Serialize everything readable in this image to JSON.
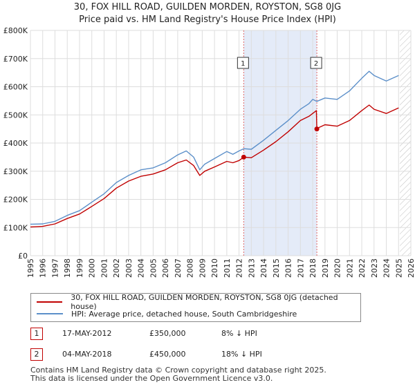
{
  "title_line1": "30, FOX HILL ROAD, GUILDEN MORDEN, ROYSTON, SG8 0JG",
  "title_line2": "Price paid vs. HM Land Registry's House Price Index (HPI)",
  "chart_data": {
    "type": "line",
    "x_range": [
      1995,
      2026
    ],
    "ylim": [
      0,
      800000
    ],
    "y_ticks": [
      0,
      100000,
      200000,
      300000,
      400000,
      500000,
      600000,
      700000,
      800000
    ],
    "y_tick_labels": [
      "£0",
      "£100K",
      "£200K",
      "£300K",
      "£400K",
      "£500K",
      "£600K",
      "£700K",
      "£800K"
    ],
    "x_ticks": [
      1995,
      1996,
      1997,
      1998,
      1999,
      2000,
      2001,
      2002,
      2003,
      2004,
      2005,
      2006,
      2007,
      2008,
      2009,
      2010,
      2011,
      2012,
      2013,
      2014,
      2015,
      2016,
      2017,
      2018,
      2019,
      2020,
      2021,
      2022,
      2023,
      2024,
      2025,
      2026
    ],
    "x_tick_labels": [
      "1995",
      "1996",
      "1997",
      "1998",
      "1999",
      "2000",
      "2001",
      "2002",
      "2003",
      "2004",
      "2005",
      "2006",
      "2007",
      "2008",
      "2009",
      "2010",
      "2011",
      "2012",
      "2013",
      "2014",
      "2015",
      "2016",
      "2017",
      "2018",
      "2019",
      "2020",
      "2021",
      "2022",
      "2023",
      "2024",
      "2025",
      "2026"
    ],
    "grid": true,
    "shaded_span": [
      2012.38,
      2018.34
    ],
    "forecast_start": 2025.1,
    "series": [
      {
        "name": "30, FOX HILL ROAD, GUILDEN MORDEN, ROYSTON, SG8 0JG (detached house)",
        "color": "#c00000",
        "x": [
          1995.0,
          1996.0,
          1997.0,
          1998.0,
          1999.0,
          2000.0,
          2001.0,
          2002.0,
          2003.0,
          2004.0,
          2005.0,
          2006.0,
          2007.0,
          2007.7,
          2008.3,
          2008.8,
          2009.2,
          2010.0,
          2011.0,
          2011.5,
          2012.0,
          2012.38,
          2013.0,
          2014.0,
          2015.0,
          2016.0,
          2017.0,
          2017.7,
          2018.3,
          2018.34,
          2018.5,
          2019.0,
          2020.0,
          2021.0,
          2022.0,
          2022.6,
          2023.0,
          2024.0,
          2025.0
        ],
        "y": [
          102000,
          104000,
          113000,
          132000,
          148000,
          175000,
          203000,
          240000,
          265000,
          282000,
          290000,
          305000,
          330000,
          340000,
          320000,
          285000,
          300000,
          315000,
          335000,
          330000,
          338000,
          350000,
          348000,
          375000,
          405000,
          440000,
          480000,
          495000,
          515000,
          450000,
          455000,
          465000,
          460000,
          480000,
          515000,
          535000,
          520000,
          505000,
          525000
        ]
      },
      {
        "name": "HPI: Average price, detached house, South Cambridgeshire",
        "color": "#5b8fc9",
        "x": [
          1995.0,
          1996.0,
          1997.0,
          1998.0,
          1999.0,
          2000.0,
          2001.0,
          2002.0,
          2003.0,
          2004.0,
          2005.0,
          2006.0,
          2007.0,
          2007.7,
          2008.3,
          2008.8,
          2009.2,
          2010.0,
          2011.0,
          2011.5,
          2012.0,
          2012.38,
          2013.0,
          2014.0,
          2015.0,
          2016.0,
          2017.0,
          2017.7,
          2018.0,
          2018.34,
          2019.0,
          2020.0,
          2021.0,
          2022.0,
          2022.6,
          2023.0,
          2024.0,
          2025.0
        ],
        "y": [
          112000,
          113000,
          122000,
          143000,
          160000,
          190000,
          220000,
          260000,
          285000,
          305000,
          312000,
          330000,
          358000,
          372000,
          350000,
          305000,
          325000,
          345000,
          370000,
          360000,
          372000,
          380000,
          378000,
          410000,
          445000,
          480000,
          520000,
          540000,
          555000,
          548000,
          560000,
          555000,
          585000,
          630000,
          655000,
          640000,
          620000,
          640000
        ]
      }
    ],
    "annotations": [
      {
        "label": "1",
        "x": 2012.38,
        "price": 350000
      },
      {
        "label": "2",
        "x": 2018.34,
        "price": 450000
      }
    ]
  },
  "sales": [
    {
      "num": "1",
      "date": "17-MAY-2012",
      "price": "£350,000",
      "hpi": "8% ↓ HPI"
    },
    {
      "num": "2",
      "date": "04-MAY-2018",
      "price": "£450,000",
      "hpi": "18% ↓ HPI"
    }
  ],
  "footer_line1": "Contains HM Land Registry data © Crown copyright and database right 2025.",
  "footer_line2": "This data is licensed under the Open Government Licence v3.0."
}
